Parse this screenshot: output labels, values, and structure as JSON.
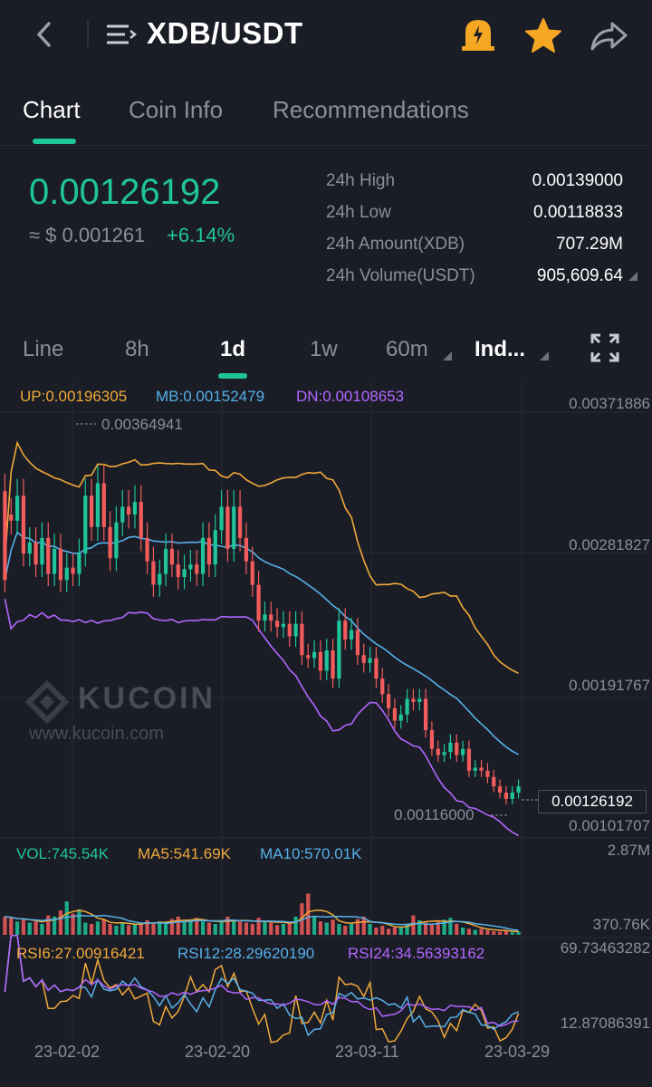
{
  "header": {
    "pair": "XDB/USDT",
    "icons": [
      "back-icon",
      "menu-icon",
      "bell-alert-icon",
      "star-icon",
      "share-icon"
    ],
    "alert_color": "#f5a623",
    "star_color": "#f5a623"
  },
  "tabs": [
    {
      "label": "Chart",
      "active": true
    },
    {
      "label": "Coin Info",
      "active": false
    },
    {
      "label": "Recommendations",
      "active": false
    }
  ],
  "price": {
    "last": "0.00126192",
    "usd": "≈ $ 0.001261",
    "change": "+6.14%",
    "up_color": "#20c49a",
    "down_color": "#f25c5c"
  },
  "stats": [
    {
      "label": "24h High",
      "value": "0.00139000"
    },
    {
      "label": "24h Low",
      "value": "0.00118833"
    },
    {
      "label": "24h Amount(XDB)",
      "value": "707.29M"
    },
    {
      "label": "24h Volume(USDT)",
      "value": "905,609.64"
    }
  ],
  "intervals": {
    "line": "Line",
    "h8": "8h",
    "d1": "1d",
    "w1": "1w",
    "m60": "60m",
    "ind": "Ind...",
    "active": "1d"
  },
  "indicators": {
    "boll": {
      "up": "UP:0.00196305",
      "mb": "MB:0.00152479",
      "dn": "DN:0.00108653"
    },
    "vol": {
      "vol": "VOL:745.54K",
      "ma5": "MA5:541.69K",
      "ma10": "MA10:570.01K"
    },
    "rsi": {
      "rsi6": "RSI6:27.00916421",
      "rsi12": "RSI12:28.29620190",
      "rsi24": "RSI24:34.56393162"
    }
  },
  "watermark": {
    "brand": "KUCOIN",
    "url": "www.kucoin.com"
  },
  "chart_data": {
    "type": "candlestick",
    "y_axis_labels": [
      "0.00371886",
      "0.00281827",
      "0.00191767",
      "0.00101707"
    ],
    "max_marker": "0.00364941",
    "min_marker": "0.00116000",
    "current_price_tag": "0.00126192",
    "volume_axis_labels": [
      "2.87M",
      "370.76K"
    ],
    "rsi_axis_labels": [
      "69.73463282",
      "12.87086391"
    ],
    "x_labels": [
      "23-02-02",
      "23-02-20",
      "23-03-11",
      "23-03-29"
    ],
    "price_range": [
      0.00101707,
      0.00371886
    ],
    "candles": [
      [
        0.00315,
        0.00258
      ],
      [
        0.003,
        0.00296
      ],
      [
        0.00296,
        0.00312
      ],
      [
        0.00312,
        0.00275
      ],
      [
        0.00275,
        0.00282
      ],
      [
        0.00282,
        0.00268
      ],
      [
        0.00268,
        0.00285
      ],
      [
        0.00285,
        0.00262
      ],
      [
        0.00262,
        0.00278
      ],
      [
        0.00278,
        0.00258
      ],
      [
        0.00258,
        0.00266
      ],
      [
        0.00266,
        0.00262
      ],
      [
        0.00262,
        0.00275
      ],
      [
        0.00275,
        0.00312
      ],
      [
        0.00312,
        0.00292
      ],
      [
        0.00292,
        0.0032
      ],
      [
        0.0032,
        0.00292
      ],
      [
        0.00292,
        0.00272
      ],
      [
        0.00272,
        0.00295
      ],
      [
        0.00295,
        0.00305
      ],
      [
        0.00305,
        0.003
      ],
      [
        0.003,
        0.00308
      ],
      [
        0.00308,
        0.00285
      ],
      [
        0.00285,
        0.0027
      ],
      [
        0.0027,
        0.00255
      ],
      [
        0.00255,
        0.00262
      ],
      [
        0.00262,
        0.00278
      ],
      [
        0.00278,
        0.00268
      ],
      [
        0.00268,
        0.0026
      ],
      [
        0.0026,
        0.00265
      ],
      [
        0.00265,
        0.00268
      ],
      [
        0.00268,
        0.00262
      ],
      [
        0.00262,
        0.00285
      ],
      [
        0.00285,
        0.00268
      ],
      [
        0.00268,
        0.0029
      ],
      [
        0.0029,
        0.00305
      ],
      [
        0.00305,
        0.00278
      ],
      [
        0.00278,
        0.00305
      ],
      [
        0.00305,
        0.00285
      ],
      [
        0.00285,
        0.0027
      ],
      [
        0.0027,
        0.00255
      ],
      [
        0.00255,
        0.00232
      ],
      [
        0.00232,
        0.00236
      ],
      [
        0.00236,
        0.00232
      ],
      [
        0.00232,
        0.00228
      ],
      [
        0.00228,
        0.0023
      ],
      [
        0.0023,
        0.00222
      ],
      [
        0.00222,
        0.0023
      ],
      [
        0.0023,
        0.0021
      ],
      [
        0.0021,
        0.00208
      ],
      [
        0.00208,
        0.00212
      ],
      [
        0.00212,
        0.002
      ],
      [
        0.002,
        0.00213
      ],
      [
        0.00213,
        0.00195
      ],
      [
        0.00195,
        0.00232
      ],
      [
        0.00232,
        0.0022
      ],
      [
        0.0022,
        0.00226
      ],
      [
        0.00226,
        0.0021
      ],
      [
        0.0021,
        0.00205
      ],
      [
        0.00205,
        0.00208
      ],
      [
        0.00208,
        0.00195
      ],
      [
        0.00195,
        0.00185
      ],
      [
        0.00185,
        0.00176
      ],
      [
        0.00176,
        0.00168
      ],
      [
        0.00168,
        0.00172
      ],
      [
        0.00172,
        0.00182
      ],
      [
        0.00182,
        0.0018
      ],
      [
        0.0018,
        0.00182
      ],
      [
        0.00182,
        0.00162
      ],
      [
        0.00162,
        0.0015
      ],
      [
        0.0015,
        0.00146
      ],
      [
        0.00146,
        0.00148
      ],
      [
        0.00148,
        0.00154
      ],
      [
        0.00154,
        0.00146
      ],
      [
        0.00146,
        0.0015
      ],
      [
        0.0015,
        0.00136
      ],
      [
        0.00136,
        0.00138
      ],
      [
        0.00138,
        0.00136
      ],
      [
        0.00136,
        0.00132
      ],
      [
        0.00132,
        0.00126
      ],
      [
        0.00126,
        0.00122
      ],
      [
        0.00122,
        0.00118
      ],
      [
        0.00118,
        0.00122
      ],
      [
        0.00122,
        0.00126
      ]
    ],
    "volumes": [
      0.3,
      0.28,
      0.22,
      0.25,
      0.2,
      0.22,
      0.18,
      0.32,
      0.3,
      0.4,
      0.55,
      0.35,
      0.42,
      0.2,
      0.18,
      0.22,
      0.25,
      0.18,
      0.15,
      0.2,
      0.16,
      0.18,
      0.2,
      0.24,
      0.18,
      0.22,
      0.2,
      0.26,
      0.3,
      0.22,
      0.24,
      0.28,
      0.22,
      0.2,
      0.18,
      0.22,
      0.3,
      0.25,
      0.22,
      0.2,
      0.18,
      0.28,
      0.22,
      0.2,
      0.16,
      0.18,
      0.2,
      0.3,
      0.52,
      0.68,
      0.3,
      0.22,
      0.2,
      0.25,
      0.18,
      0.15,
      0.18,
      0.26,
      0.3,
      0.18,
      0.12,
      0.15,
      0.1,
      0.12,
      0.14,
      0.18,
      0.32,
      0.24,
      0.2,
      0.18,
      0.22,
      0.25,
      0.28,
      0.18,
      0.12,
      0.1,
      0.08,
      0.1,
      0.08,
      0.06,
      0.05,
      0.06,
      0.04,
      0.05
    ]
  }
}
